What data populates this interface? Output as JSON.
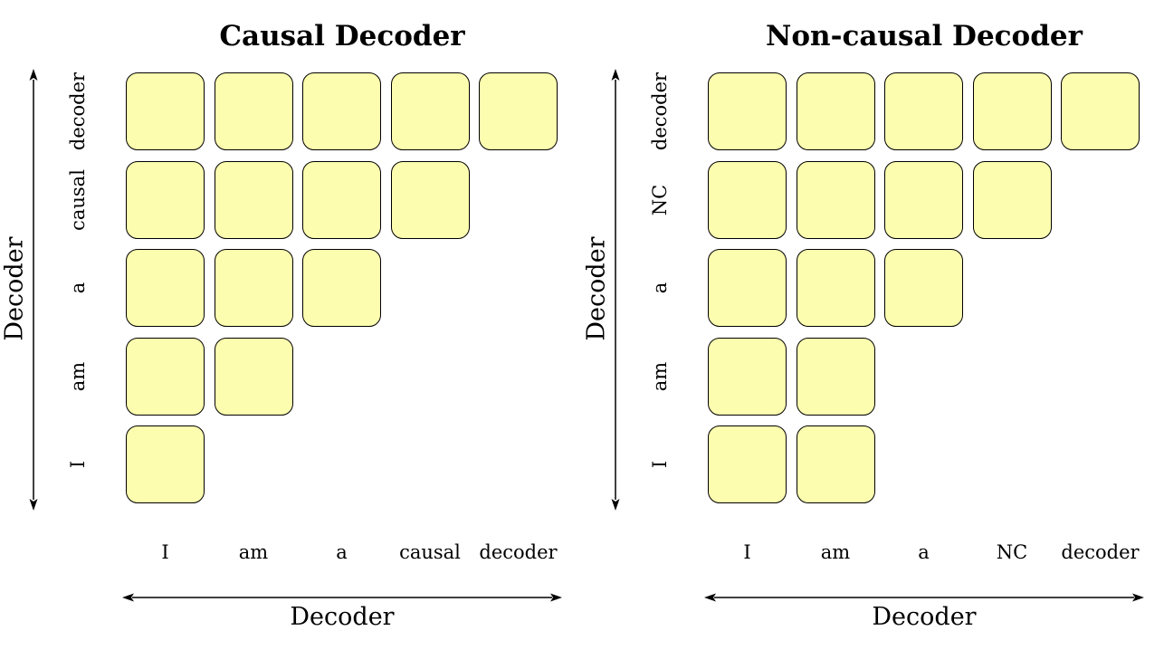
{
  "panels": [
    {
      "title": "Causal Decoder",
      "col_tokens": [
        "I",
        "am",
        "a",
        "causal",
        "decoder"
      ],
      "row_tokens_top_to_bottom": [
        "decoder",
        "causal",
        "a",
        "am",
        "I"
      ],
      "cells_per_row_top_to_bottom": [
        5,
        4,
        3,
        2,
        1
      ],
      "x_axis_title": "Decoder",
      "y_axis_title": "Decoder"
    },
    {
      "title": "Non-causal Decoder",
      "col_tokens": [
        "I",
        "am",
        "a",
        "NC",
        "decoder"
      ],
      "row_tokens_top_to_bottom": [
        "decoder",
        "NC",
        "a",
        "am",
        "I"
      ],
      "cells_per_row_top_to_bottom": [
        5,
        4,
        3,
        2,
        2
      ],
      "x_axis_title": "Decoder",
      "y_axis_title": "Decoder"
    }
  ],
  "colors": {
    "cell_fill": "#fdfdb0",
    "cell_border": "#000000"
  }
}
